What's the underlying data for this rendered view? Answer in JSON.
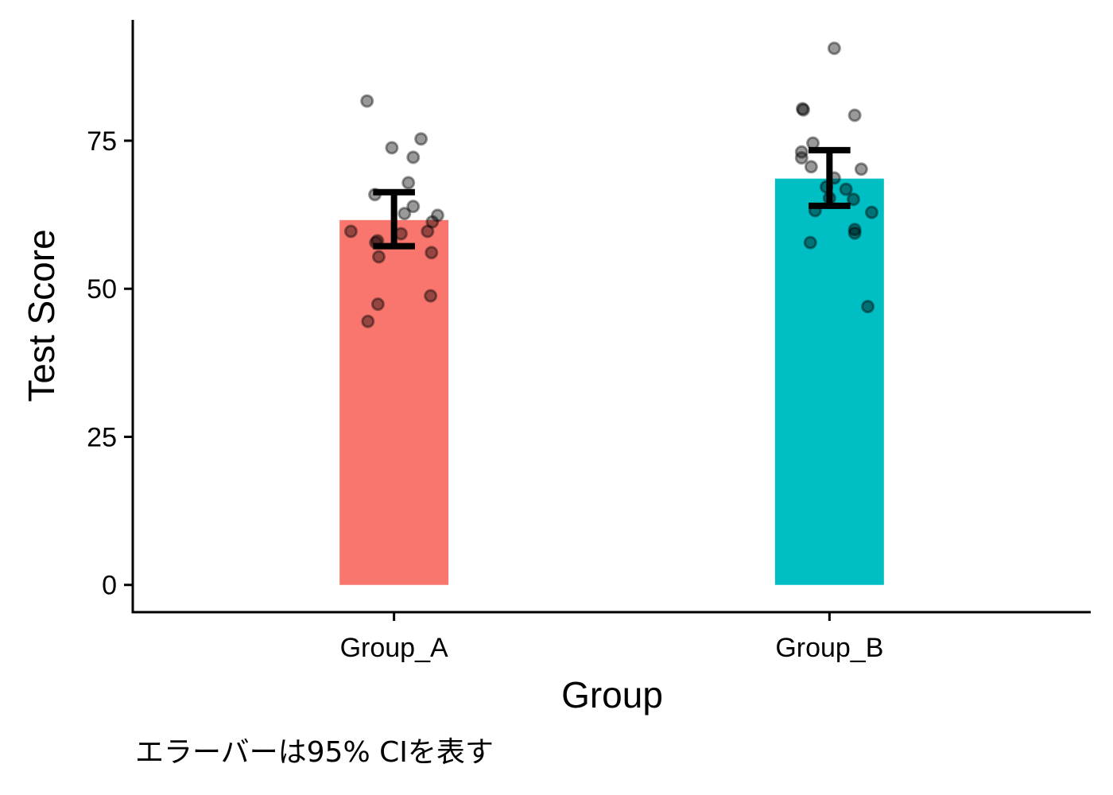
{
  "chart_data": {
    "type": "bar",
    "title": "",
    "xlabel": "Group",
    "ylabel": "Test Score",
    "caption": "エラーバーは95% CIを表す",
    "categories": [
      "Group_A",
      "Group_B"
    ],
    "values": [
      61.6,
      68.6
    ],
    "colors": [
      "#F8766D",
      "#00BFC4"
    ],
    "error_bars": [
      {
        "lower": 57.2,
        "upper": 66.3
      },
      {
        "lower": 64.0,
        "upper": 73.4
      }
    ],
    "ylim": [
      -4.6,
      95.4
    ],
    "xlim": [
      0.4,
      2.6
    ],
    "yticks": [
      0,
      25,
      50,
      75
    ],
    "grid": false,
    "legend": "none",
    "points": [
      {
        "group": "Group_A",
        "jitter": [
          -0.062,
          0.062,
          -0.005,
          0.044,
          0.033,
          -0.044,
          0.044,
          0.024,
          0.1,
          0.088,
          -0.099,
          0.016,
          0.077,
          -0.038,
          -0.042,
          -0.035,
          0.086,
          0.084,
          -0.037,
          -0.06
        ],
        "y": [
          81.7,
          75.3,
          73.8,
          72.2,
          67.9,
          65.9,
          63.9,
          62.7,
          62.4,
          61.3,
          59.7,
          59.3,
          59.7,
          58.1,
          57.8,
          55.4,
          56.1,
          48.8,
          47.4,
          44.5
        ]
      },
      {
        "group": "Group_B",
        "jitter": [
          0.011,
          -0.06,
          -0.062,
          0.058,
          -0.038,
          -0.064,
          -0.064,
          -0.042,
          0.073,
          0.011,
          -0.007,
          0.038,
          0.0,
          0.055,
          -0.033,
          0.097,
          0.058,
          0.058,
          -0.044,
          0.088
        ],
        "y": [
          90.6,
          80.2,
          80.4,
          79.3,
          74.6,
          73.1,
          72.1,
          70.6,
          70.2,
          68.7,
          67.2,
          66.8,
          65.3,
          65.1,
          63.2,
          62.9,
          60.0,
          59.4,
          57.8,
          47.0
        ]
      }
    ]
  }
}
